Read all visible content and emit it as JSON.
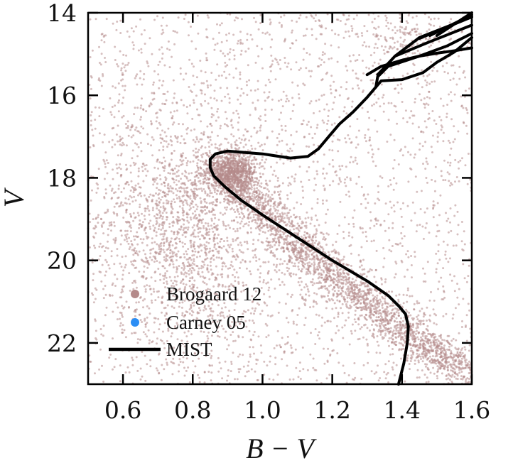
{
  "chart_data": {
    "type": "scatter",
    "title": "",
    "xlabel": "B − V",
    "ylabel": "V",
    "xlim": [
      0.5,
      1.6
    ],
    "ylim": [
      23,
      14
    ],
    "y_inverted": true,
    "xticks": [
      0.6,
      0.8,
      1.0,
      1.2,
      1.4,
      1.6
    ],
    "xtick_labels": [
      "0.6",
      "0.8",
      "1.0",
      "1.2",
      "1.4",
      "1.6"
    ],
    "yticks": [
      14,
      16,
      18,
      20,
      22
    ],
    "ytick_labels": [
      "14",
      "16",
      "18",
      "20",
      "22"
    ],
    "grid": false,
    "legend": {
      "position": "lower-left",
      "entries": [
        {
          "name": "Brogaard 12",
          "marker": "dot",
          "color": "#b48a8a"
        },
        {
          "name": "Carney 05",
          "marker": "dot",
          "color": "#2b8ef5"
        },
        {
          "name": "MIST",
          "marker": "line",
          "color": "#000000"
        }
      ]
    },
    "series": [
      {
        "name": "Brogaard 12",
        "kind": "scatter_density",
        "color": "#b48a8a",
        "description_regions": [
          {
            "component": "field",
            "x_range": [
              0.5,
              1.6
            ],
            "y_range": [
              14,
              23
            ],
            "density": "sparse"
          },
          {
            "component": "turnoff",
            "center": [
              0.9,
              17.8
            ],
            "density": "high"
          },
          {
            "component": "main_sequence",
            "from": [
              0.88,
              17.7
            ],
            "to": [
              1.6,
              22.8
            ],
            "density": "high"
          },
          {
            "component": "red_clump",
            "center": [
              1.4,
              14.6
            ],
            "density": "medium"
          }
        ]
      },
      {
        "name": "Carney 05",
        "kind": "scatter",
        "color": "#2b8ef5",
        "x": [],
        "y": []
      },
      {
        "name": "MIST",
        "kind": "line",
        "color": "#000000",
        "segments": [
          {
            "x": [
              1.39,
              1.405,
              1.415,
              1.418,
              1.41,
              1.39,
              1.36,
              1.3,
              1.2,
              1.1,
              1.0,
              0.94,
              0.89,
              0.86,
              0.85,
              0.85,
              0.865,
              0.9,
              1.0,
              1.08,
              1.13,
              1.16,
              1.19,
              1.22,
              1.26,
              1.3,
              1.325,
              1.34,
              1.4,
              1.46,
              1.5,
              1.55,
              1.6
            ],
            "y": [
              23.0,
              22.5,
              22.0,
              21.6,
              21.3,
              21.1,
              20.85,
              20.5,
              20.0,
              19.45,
              18.9,
              18.55,
              18.2,
              17.95,
              17.75,
              17.55,
              17.42,
              17.35,
              17.42,
              17.52,
              17.48,
              17.3,
              17.0,
              16.7,
              16.4,
              16.05,
              15.8,
              15.65,
              15.62,
              15.45,
              15.2,
              14.95,
              14.6
            ]
          },
          {
            "x": [
              1.325,
              1.33,
              1.36,
              1.45,
              1.53,
              1.6
            ],
            "y": [
              15.8,
              15.55,
              15.3,
              15.05,
              14.8,
              14.5
            ]
          },
          {
            "x": [
              1.33,
              1.38,
              1.48,
              1.6
            ],
            "y": [
              15.5,
              15.05,
              14.7,
              14.3
            ]
          },
          {
            "x": [
              1.38,
              1.45,
              1.6
            ],
            "y": [
              15.05,
              14.6,
              14.1
            ]
          },
          {
            "x": [
              1.45,
              1.6
            ],
            "y": [
              14.62,
              14.1
            ]
          },
          {
            "x": [
              1.48,
              1.6
            ],
            "y": [
              14.55,
              14.05
            ]
          },
          {
            "x": [
              1.5,
              1.6
            ],
            "y": [
              14.55,
              14.0
            ]
          },
          {
            "x": [
              1.3,
              1.34,
              1.4,
              1.45,
              1.5,
              1.55,
              1.6
            ],
            "y": [
              15.5,
              15.3,
              15.15,
              15.05,
              14.98,
              14.92,
              14.85
            ]
          }
        ]
      }
    ]
  }
}
